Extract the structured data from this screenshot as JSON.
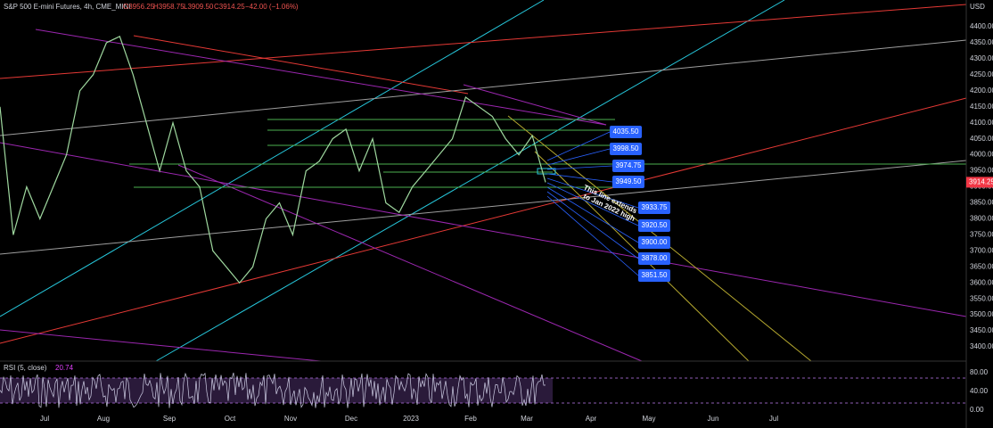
{
  "header": {
    "symbol": "S&P 500 E-mini Futures, 4h, CME_MINI",
    "ohlc": [
      "O3956.25",
      "H3958.75",
      "L3909.50",
      "C3914.25",
      "−42.00 (−1.06%)"
    ]
  },
  "price_axis": {
    "unit": "USD",
    "ticks": [
      "4400.00",
      "4350.00",
      "4300.00",
      "4250.00",
      "4200.00",
      "4150.00",
      "4100.00",
      "4050.00",
      "4000.00",
      "3950.00",
      "3900.00",
      "3850.00",
      "3800.00",
      "3750.00",
      "3700.00",
      "3650.00",
      "3600.00",
      "3550.00",
      "3500.00",
      "3450.00",
      "3400.00"
    ],
    "last_price": "3914.25"
  },
  "time_axis": [
    "Jul",
    "Aug",
    "Sep",
    "Oct",
    "Nov",
    "Dec",
    "2023",
    "Feb",
    "Mar",
    "Apr",
    "May",
    "Jun",
    "Jul"
  ],
  "callouts": [
    "4035.50",
    "3998.50",
    "3974.75",
    "3949.50",
    "3933.75",
    "3920.50",
    "3900.00",
    "3878.00",
    "3851.50"
  ],
  "annotation": [
    "This line extends",
    "to Jan 2022 high"
  ],
  "rsi": {
    "label": "RSI (5, close)",
    "value": "20.74",
    "ticks": [
      "80.00",
      "40.00",
      "0.00"
    ]
  },
  "price_trace": [
    4150,
    3750,
    3900,
    3800,
    3900,
    4000,
    4200,
    4250,
    4350,
    4370,
    4250,
    4100,
    3950,
    4100,
    3950,
    3900,
    3700,
    3650,
    3600,
    3650,
    3800,
    3850,
    3750,
    3950,
    3980,
    4050,
    4080,
    3950,
    4050,
    3850,
    3820,
    3900,
    3950,
    4000,
    4050,
    4180,
    4150,
    4120,
    4050,
    4000,
    4060,
    3914.25
  ]
}
